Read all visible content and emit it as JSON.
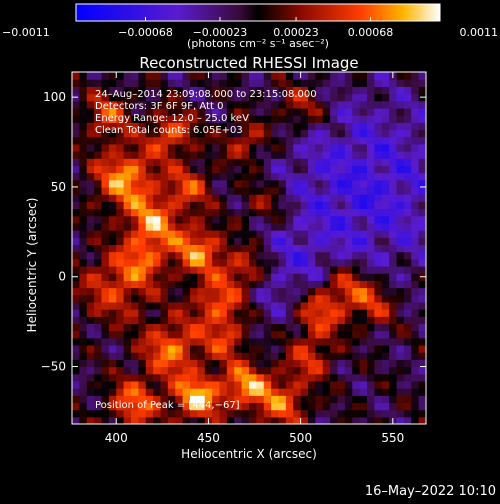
{
  "chart_data": {
    "type": "heatmap",
    "title": "Reconstructed RHESSI Image",
    "xlabel": "Heliocentric X (arcsec)",
    "ylabel": "Heliocentric Y (arcsec)",
    "xlim": [
      376,
      568
    ],
    "ylim": [
      -82,
      114
    ],
    "xticks": [
      400,
      450,
      500,
      550
    ],
    "xtick_labels": [
      "400",
      "450",
      "500",
      "550"
    ],
    "yticks": [
      -50,
      0,
      50,
      100
    ],
    "ytick_labels": [
      "−50",
      "0",
      "50",
      "100"
    ],
    "colorbar": {
      "min": -0.0011,
      "max": 0.0011,
      "ticks": [
        -0.0011,
        -0.00068,
        -0.00023,
        0.00023,
        0.00068,
        0.0011
      ],
      "tick_labels": [
        "−0.0011",
        "−0.00068",
        "−0.00023",
        "0.00023",
        "0.00068",
        "0.0011"
      ],
      "unit_label": "(photons cm⁻² s⁻¹ asec⁻²)"
    },
    "annotations": {
      "time": "24–Aug–2014 23:09:08.000 to 23:15:08.000",
      "detectors": "Detectors: 3F 6F 9F, Att 0",
      "energy": "Energy Range: 12.0 – 25.0 keV",
      "clean": "Clean    Total counts: 6.05E+03",
      "peak": "Position of Peak = [444,−67]"
    },
    "grid_step_arcsec": 4,
    "peak_position": [
      444,
      -67
    ]
  },
  "footer": {
    "date": "16–May–2022 10:10"
  }
}
